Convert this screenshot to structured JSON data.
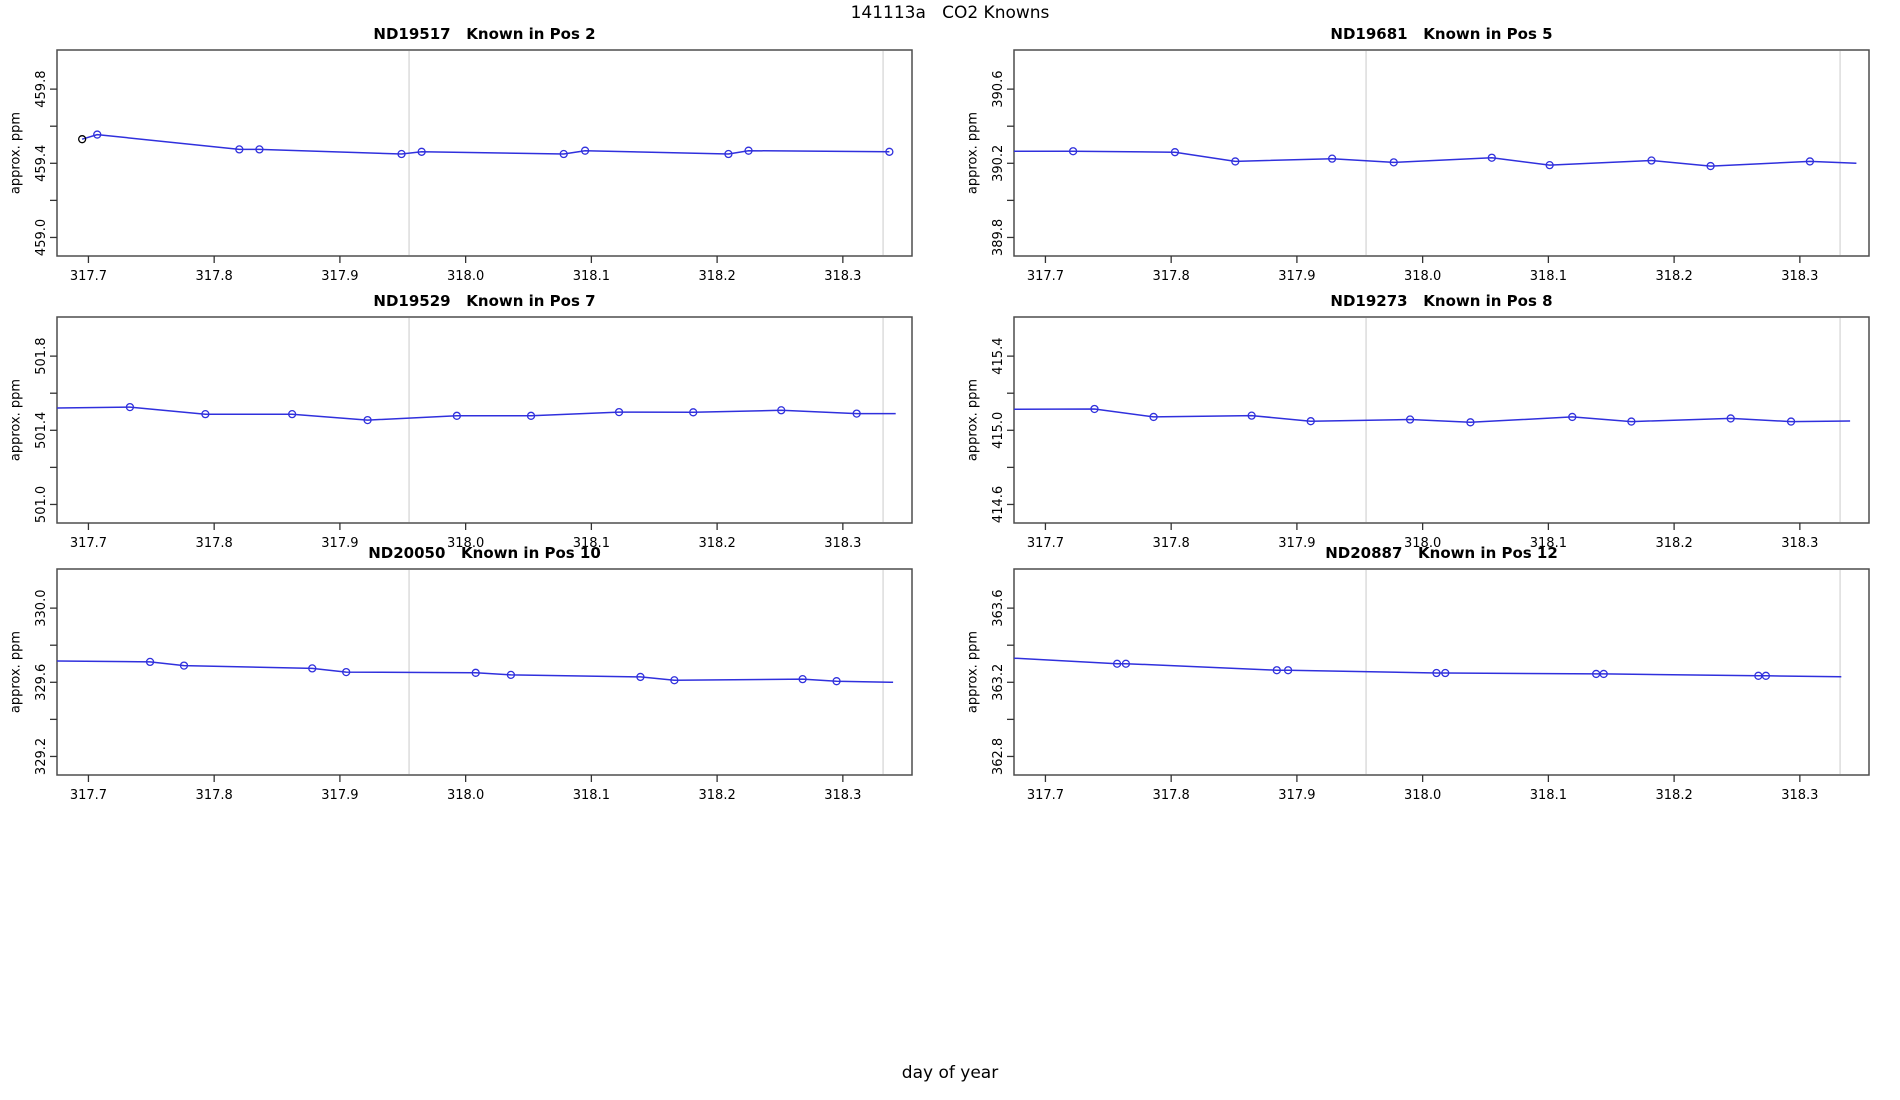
{
  "page_title": "141113a   CO2 Knowns",
  "x_axis_title": "day of year",
  "colors": {
    "line": "#3030dd",
    "marker": "#3030dd",
    "first_marker_override": "#000000",
    "gridline": "#dcdcdc",
    "frame": "#4d4d4d",
    "tick": "#333333",
    "text": "#000000",
    "background": "#ffffff"
  },
  "axis": {
    "xlim": [
      317.675,
      318.355
    ],
    "x_ticks": [
      317.7,
      317.8,
      317.9,
      318.0,
      318.1,
      318.2,
      318.3
    ],
    "vlines": [
      317.955,
      318.332
    ],
    "y_minor_step": 0.2
  },
  "chart_data": [
    {
      "type": "line",
      "id": "ND19517",
      "title": "ND19517   Known in Pos 2",
      "ylabel": "approx. ppm",
      "y_ticks": [
        459.0,
        459.4,
        459.8
      ],
      "ylim": [
        458.9,
        460.011
      ],
      "marker_colors": {
        "0": "#000000"
      },
      "line_pre": [],
      "points": [
        [
          317.695,
          459.53
        ],
        [
          317.707,
          459.555
        ],
        [
          317.82,
          459.475
        ],
        [
          317.836,
          459.475
        ],
        [
          317.949,
          459.45
        ],
        [
          317.965,
          459.462
        ],
        [
          318.078,
          459.45
        ],
        [
          318.095,
          459.468
        ],
        [
          318.209,
          459.45
        ],
        [
          318.225,
          459.468
        ],
        [
          318.337,
          459.462
        ]
      ],
      "line_post": []
    },
    {
      "type": "line",
      "id": "ND19681",
      "title": "ND19681   Known in Pos 5",
      "ylabel": "approx. ppm",
      "y_ticks": [
        389.8,
        390.2,
        390.6
      ],
      "ylim": [
        389.7,
        390.811
      ],
      "marker_colors": {},
      "line_pre": [
        [
          317.675,
          390.265
        ]
      ],
      "points": [
        [
          317.722,
          390.265
        ],
        [
          317.803,
          390.26
        ],
        [
          317.851,
          390.21
        ],
        [
          317.928,
          390.225
        ],
        [
          317.977,
          390.205
        ],
        [
          318.055,
          390.23
        ],
        [
          318.101,
          390.19
        ],
        [
          318.182,
          390.215
        ],
        [
          318.229,
          390.185
        ],
        [
          318.308,
          390.21
        ]
      ],
      "line_post": [
        [
          318.345,
          390.2
        ]
      ]
    },
    {
      "type": "line",
      "id": "ND19529",
      "title": "ND19529   Known in Pos 7",
      "ylabel": "approx. ppm",
      "y_ticks": [
        501.0,
        501.4,
        501.8
      ],
      "ylim": [
        500.9,
        502.011
      ],
      "marker_colors": {},
      "line_pre": [
        [
          317.675,
          501.52
        ]
      ],
      "points": [
        [
          317.733,
          501.525
        ],
        [
          317.793,
          501.487
        ],
        [
          317.862,
          501.487
        ],
        [
          317.922,
          501.455
        ],
        [
          317.993,
          501.478
        ],
        [
          318.052,
          501.478
        ],
        [
          318.122,
          501.498
        ],
        [
          318.181,
          501.497
        ],
        [
          318.251,
          501.508
        ],
        [
          318.311,
          501.49
        ]
      ],
      "line_post": [
        [
          318.342,
          501.49
        ]
      ]
    },
    {
      "type": "line",
      "id": "ND19273",
      "title": "ND19273   Known in Pos 8",
      "ylabel": "approx. ppm",
      "y_ticks": [
        414.6,
        415.0,
        415.4
      ],
      "ylim": [
        414.5,
        415.611
      ],
      "marker_colors": {},
      "line_pre": [
        [
          317.675,
          415.113
        ]
      ],
      "points": [
        [
          317.739,
          415.115
        ],
        [
          317.786,
          415.072
        ],
        [
          317.864,
          415.079
        ],
        [
          317.911,
          415.049
        ],
        [
          317.99,
          415.058
        ],
        [
          318.038,
          415.043
        ],
        [
          318.119,
          415.072
        ],
        [
          318.166,
          415.047
        ],
        [
          318.245,
          415.064
        ],
        [
          318.293,
          415.047
        ]
      ],
      "line_post": [
        [
          318.34,
          415.05
        ]
      ]
    },
    {
      "type": "line",
      "id": "ND20050",
      "title": "ND20050   Known in Pos 10",
      "ylabel": "approx. ppm",
      "y_ticks": [
        329.2,
        329.6,
        330.0
      ],
      "ylim": [
        329.1,
        330.211
      ],
      "marker_colors": {},
      "line_pre": [
        [
          317.675,
          329.715
        ]
      ],
      "points": [
        [
          317.749,
          329.71
        ],
        [
          317.776,
          329.69
        ],
        [
          317.878,
          329.675
        ],
        [
          317.905,
          329.655
        ],
        [
          318.008,
          329.651
        ],
        [
          318.036,
          329.64
        ],
        [
          318.139,
          329.629
        ],
        [
          318.166,
          329.611
        ],
        [
          318.268,
          329.617
        ],
        [
          318.295,
          329.606
        ]
      ],
      "line_post": [
        [
          318.34,
          329.6
        ]
      ]
    },
    {
      "type": "line",
      "id": "ND20887",
      "title": "ND20887   Known in Pos 12",
      "ylabel": "approx. ppm",
      "y_ticks": [
        362.8,
        363.2,
        363.6
      ],
      "ylim": [
        362.7,
        363.811
      ],
      "marker_colors": {},
      "line_pre": [
        [
          317.675,
          363.33
        ]
      ],
      "points": [
        [
          317.757,
          363.3
        ],
        [
          317.764,
          363.3
        ],
        [
          317.884,
          363.265
        ],
        [
          317.893,
          363.265
        ],
        [
          318.011,
          363.25
        ],
        [
          318.018,
          363.25
        ],
        [
          318.138,
          363.245
        ],
        [
          318.144,
          363.245
        ],
        [
          318.267,
          363.235
        ],
        [
          318.273,
          363.235
        ]
      ],
      "line_post": [
        [
          318.333,
          363.23
        ]
      ]
    }
  ]
}
